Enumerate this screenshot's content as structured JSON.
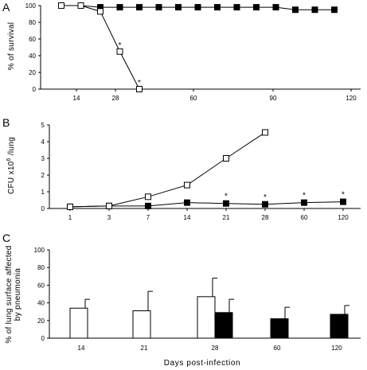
{
  "common": {
    "xlabel": "Days post-infection"
  },
  "chart_data": [
    {
      "type": "line",
      "panel": "A",
      "ylabel": "% of survival",
      "ylim": [
        0,
        100
      ],
      "yticks": [
        "0",
        "20",
        "40",
        "60",
        "80",
        "100"
      ],
      "xticks": [
        "14",
        "28",
        "60",
        "90",
        "120"
      ],
      "series": [
        {
          "marker": "filled-square",
          "x": [
            1,
            2,
            3,
            4,
            5,
            6,
            7,
            8,
            9,
            10,
            11,
            12,
            13,
            14,
            15
          ],
          "y": [
            100,
            100,
            98,
            98,
            98,
            98,
            98,
            98,
            98,
            98,
            98,
            98,
            95,
            95,
            95
          ]
        },
        {
          "marker": "open-square",
          "x": [
            1,
            2,
            3,
            4,
            5
          ],
          "y": [
            100,
            100,
            93,
            45,
            0
          ],
          "stars": [
            4,
            5
          ]
        }
      ]
    },
    {
      "type": "line",
      "panel": "B",
      "ylabel": "CFU x10⁶ /lung",
      "ylim": [
        0,
        5
      ],
      "yticks": [
        "0",
        "1",
        "2",
        "3",
        "4",
        "5"
      ],
      "xticks": [
        "1",
        "3",
        "7",
        "14",
        "21",
        "28",
        "60",
        "120"
      ],
      "series": [
        {
          "marker": "open-square",
          "x": [
            "1",
            "3",
            "7",
            "14",
            "21",
            "28"
          ],
          "y": [
            0.1,
            0.15,
            0.7,
            1.4,
            3.0,
            4.55
          ]
        },
        {
          "marker": "filled-square",
          "x": [
            "1",
            "3",
            "7",
            "14",
            "21",
            "28",
            "60",
            "120"
          ],
          "y": [
            0.1,
            0.15,
            0.15,
            0.35,
            0.3,
            0.25,
            0.35,
            0.4
          ],
          "stars": [
            "21",
            "28",
            "60",
            "120"
          ]
        }
      ]
    },
    {
      "type": "bar",
      "panel": "C",
      "ylabel": "% of lung surface affected by pneumonia",
      "ylim": [
        0,
        100
      ],
      "yticks": [
        "0",
        "20",
        "40",
        "60",
        "80",
        "100"
      ],
      "categories": [
        "14",
        "21",
        "28",
        "60",
        "120"
      ],
      "series": [
        {
          "fill": "open",
          "values": [
            34,
            31,
            47,
            null,
            null
          ],
          "errors": [
            10,
            22,
            21,
            null,
            null
          ]
        },
        {
          "fill": "filled",
          "values": [
            null,
            null,
            29,
            22,
            27
          ],
          "errors": [
            null,
            null,
            15,
            13,
            10
          ]
        }
      ]
    }
  ]
}
